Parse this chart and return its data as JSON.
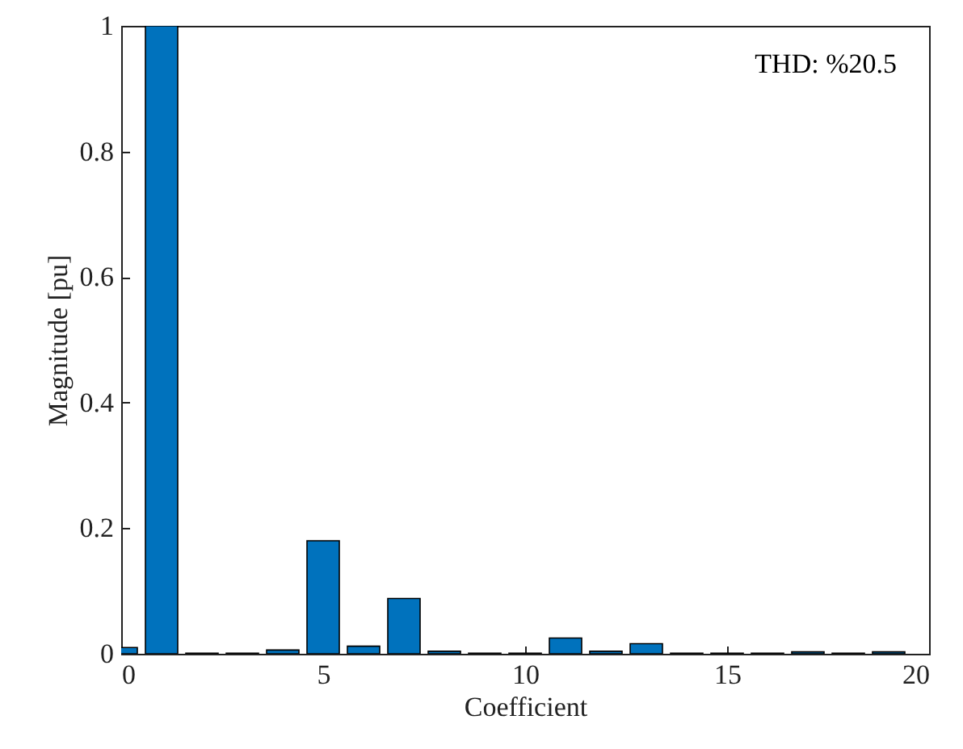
{
  "chart_data": {
    "type": "bar",
    "xlabel": "Coefficient",
    "ylabel": "Magnitude [pu]",
    "annotations": [
      "THD: %20.5"
    ],
    "x": [
      0,
      1,
      2,
      3,
      4,
      5,
      6,
      7,
      8,
      9,
      10,
      11,
      12,
      13,
      14,
      15,
      16,
      17,
      18,
      19
    ],
    "values": [
      0.01,
      1,
      0.001,
      0.001,
      0.006,
      0.18,
      0.012,
      0.088,
      0.004,
      0.001,
      0.001,
      0.025,
      0.004,
      0.016,
      0.001,
      0.001,
      0.001,
      0.003,
      0.001,
      0.003
    ],
    "color": "#0072bd",
    "xlim": [
      0,
      20
    ],
    "xticks": [
      0,
      5,
      10,
      15,
      20
    ],
    "ylim": [
      0,
      1
    ],
    "yticks": [
      0,
      0.2,
      0.4,
      0.6,
      0.8,
      1
    ],
    "grid": false
  }
}
